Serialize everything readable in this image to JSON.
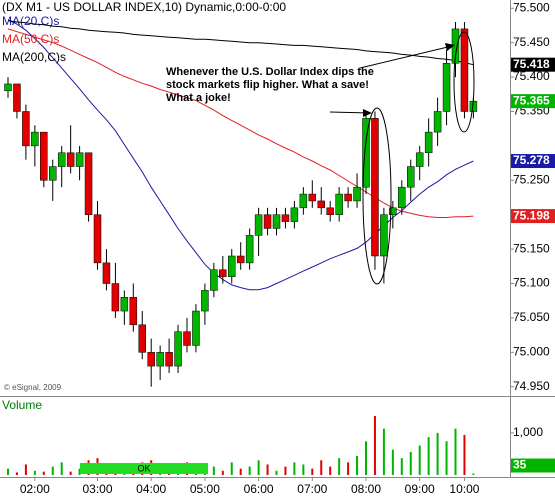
{
  "chart_data": {
    "type": "candlestick",
    "title": "(DX M1 - US DOLLAR INDEX,10) Dynamic,0:00-0:00",
    "annotation": "Whenever the U.S. Dollar Index dips the stock markets flip higher. What a save! What a joke!",
    "credit": "© eSignal, 2009",
    "categories": [
      null,
      null,
      null,
      "02:00",
      null,
      null,
      null,
      null,
      null,
      null,
      "03:00",
      null,
      null,
      null,
      null,
      null,
      "04:00",
      null,
      null,
      null,
      null,
      null,
      "05:00",
      null,
      null,
      null,
      null,
      null,
      "06:00",
      null,
      null,
      null,
      null,
      null,
      "07:00",
      null,
      null,
      null,
      null,
      null,
      "08:00",
      null,
      null,
      null,
      null,
      null,
      "09:00",
      null,
      null,
      null,
      null,
      "10:00",
      null
    ],
    "candles": {
      "color_up": "#00b400",
      "color_down": "#e00000",
      "open": [
        75.38,
        75.39,
        75.35,
        75.3,
        75.32,
        75.25,
        75.27,
        75.29,
        75.27,
        75.29,
        75.2,
        75.13,
        75.1,
        75.06,
        75.08,
        75.04,
        75.0,
        74.98,
        75.0,
        74.98,
        75.03,
        75.01,
        75.06,
        75.09,
        75.12,
        75.11,
        75.14,
        75.13,
        75.17,
        75.2,
        75.18,
        75.2,
        75.19,
        75.21,
        75.23,
        75.22,
        75.21,
        75.2,
        75.23,
        75.22,
        75.24,
        75.34,
        75.14,
        75.2,
        75.21,
        75.24,
        75.27,
        75.29,
        75.32,
        75.35,
        75.42,
        75.47,
        75.35
      ],
      "high": [
        75.4,
        75.39,
        75.36,
        75.33,
        75.32,
        75.28,
        75.3,
        75.33,
        75.3,
        75.29,
        75.22,
        75.15,
        75.13,
        75.09,
        75.1,
        75.06,
        75.02,
        75.01,
        75.02,
        75.04,
        75.05,
        75.07,
        75.1,
        75.13,
        75.14,
        75.15,
        75.16,
        75.18,
        75.21,
        75.21,
        75.21,
        75.21,
        75.22,
        75.24,
        75.25,
        75.24,
        75.22,
        75.24,
        75.24,
        75.26,
        75.35,
        75.35,
        75.21,
        75.22,
        75.25,
        75.28,
        75.3,
        75.34,
        75.37,
        75.44,
        75.48,
        75.48,
        75.37
      ],
      "low": [
        75.37,
        75.34,
        75.28,
        75.27,
        75.24,
        75.22,
        75.24,
        75.26,
        75.25,
        75.19,
        75.12,
        75.09,
        75.05,
        75.04,
        75.03,
        74.99,
        74.95,
        74.96,
        74.97,
        74.97,
        75.0,
        75.0,
        75.04,
        75.08,
        75.1,
        75.1,
        75.12,
        75.12,
        75.14,
        75.17,
        75.17,
        75.18,
        75.18,
        75.2,
        75.21,
        75.2,
        75.19,
        75.19,
        75.21,
        75.21,
        75.23,
        75.12,
        75.1,
        75.18,
        75.2,
        75.22,
        75.25,
        75.27,
        75.3,
        75.33,
        75.4,
        75.34,
        75.34
      ],
      "close": [
        75.39,
        75.35,
        75.3,
        75.32,
        75.25,
        75.27,
        75.29,
        75.27,
        75.29,
        75.2,
        75.13,
        75.1,
        75.06,
        75.08,
        75.04,
        75.0,
        74.98,
        75.0,
        74.98,
        75.03,
        75.01,
        75.06,
        75.09,
        75.12,
        75.11,
        75.14,
        75.13,
        75.17,
        75.2,
        75.18,
        75.2,
        75.19,
        75.21,
        75.23,
        75.22,
        75.21,
        75.2,
        75.23,
        75.22,
        75.24,
        75.34,
        75.14,
        75.2,
        75.21,
        75.24,
        75.27,
        75.29,
        75.32,
        75.35,
        75.42,
        75.47,
        75.35,
        75.365
      ],
      "label_color": "#00b400"
    },
    "series": [
      {
        "name": "MA(20,C)s",
        "color": "#1a1aa8",
        "values": [
          75.483,
          75.477,
          75.468,
          75.456,
          75.443,
          75.428,
          75.413,
          75.398,
          75.383,
          75.367,
          75.352,
          75.338,
          75.322,
          75.302,
          75.282,
          75.262,
          75.24,
          75.22,
          75.2,
          75.18,
          75.162,
          75.145,
          75.128,
          75.115,
          75.106,
          75.098,
          75.094,
          75.091,
          75.091,
          75.094,
          75.1,
          75.106,
          75.112,
          75.118,
          75.124,
          75.13,
          75.136,
          75.141,
          75.146,
          75.151,
          75.16,
          75.172,
          75.184,
          75.196,
          75.206,
          75.218,
          75.23,
          75.24,
          75.248,
          75.258,
          75.266,
          75.272,
          75.278
        ]
      },
      {
        "name": "MA(50,C)s",
        "color": "#e02020",
        "values": [
          75.47,
          75.466,
          75.462,
          75.458,
          75.454,
          75.45,
          75.445,
          75.439,
          75.433,
          75.427,
          75.421,
          75.414,
          75.407,
          75.401,
          75.396,
          75.391,
          75.387,
          75.382,
          75.378,
          75.374,
          75.37,
          75.366,
          75.359,
          75.352,
          75.344,
          75.337,
          75.33,
          75.323,
          75.316,
          75.31,
          75.303,
          75.297,
          75.291,
          75.284,
          75.278,
          75.271,
          75.265,
          75.257,
          75.249,
          75.241,
          75.233,
          75.225,
          75.217,
          75.21,
          75.205,
          75.202,
          75.199,
          75.197,
          75.196,
          75.196,
          75.197,
          75.197,
          75.198
        ]
      },
      {
        "name": "MA(200,C)s",
        "color": "#000000",
        "values": [
          75.482,
          75.48,
          75.479,
          75.477,
          75.476,
          75.474,
          75.473,
          75.471,
          75.47,
          75.468,
          75.467,
          75.466,
          75.465,
          75.464,
          75.462,
          75.461,
          75.46,
          75.459,
          75.458,
          75.457,
          75.456,
          75.455,
          75.455,
          75.454,
          75.453,
          75.452,
          75.451,
          75.45,
          75.45,
          75.449,
          75.448,
          75.447,
          75.446,
          75.446,
          75.445,
          75.444,
          75.443,
          75.442,
          75.441,
          75.44,
          75.438,
          75.437,
          75.436,
          75.435,
          75.433,
          75.432,
          75.43,
          75.429,
          75.427,
          75.426,
          75.424,
          75.421,
          75.418
        ]
      }
    ],
    "ylim": [
      74.938,
      75.512
    ],
    "yticks": [
      {
        "value": 75.5,
        "label": "75.500"
      },
      {
        "value": 75.45,
        "label": "75.450"
      },
      {
        "value": 75.4,
        "label": "75.400"
      },
      {
        "value": 75.35,
        "label": "75.350"
      },
      {
        "value": 75.25,
        "label": "75.250"
      },
      {
        "value": 75.15,
        "label": "75.150"
      },
      {
        "value": 75.1,
        "label": "75.100"
      },
      {
        "value": 75.05,
        "label": "75.050"
      },
      {
        "value": 75.0,
        "label": "75.000"
      },
      {
        "value": 74.95,
        "label": "74.950"
      }
    ],
    "volume": {
      "title": "Volume",
      "button": "OK",
      "values": [
        150,
        60,
        250,
        100,
        80,
        200,
        300,
        80,
        150,
        350,
        400,
        200,
        100,
        150,
        250,
        300,
        350,
        200,
        150,
        80,
        300,
        150,
        250,
        200,
        100,
        300,
        150,
        200,
        350,
        250,
        100,
        200,
        300,
        250,
        150,
        350,
        200,
        400,
        300,
        450,
        800,
        1400,
        1100,
        600,
        400,
        550,
        700,
        900,
        1000,
        800,
        1100,
        950,
        35
      ],
      "ylim": [
        0,
        1780
      ],
      "yticks": [
        {
          "value": 1000,
          "label": "1,000"
        }
      ]
    }
  }
}
